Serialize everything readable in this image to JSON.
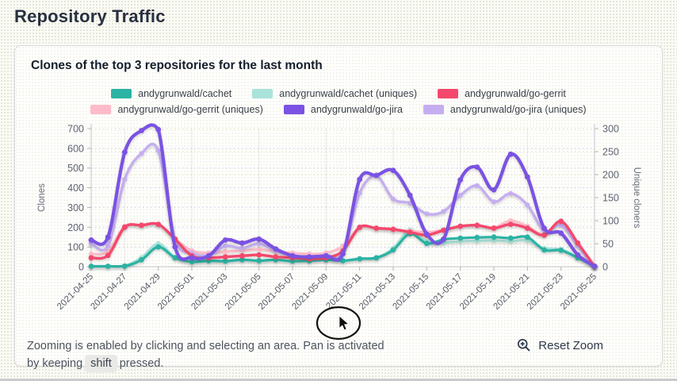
{
  "page": {
    "title": "Repository Traffic"
  },
  "card": {
    "title": "Clones of the top 3 repositories for the last month",
    "footer": {
      "line1": "Zooming is enabled by clicking and selecting an area. Pan is activated",
      "line2_before": "by keeping",
      "kbd": "shift",
      "line2_after": "pressed."
    },
    "reset_zoom_label": "Reset Zoom"
  },
  "icons": {
    "zoom_in": "zoom-in-icon",
    "cursor": "mouse-cursor-icon"
  },
  "chart_data": {
    "type": "line",
    "title": "Clones of the top 3 repositories for the last month",
    "grid": true,
    "legend_position": "top",
    "x": [
      "2021-04-25",
      "2021-04-26",
      "2021-04-27",
      "2021-04-28",
      "2021-04-29",
      "2021-04-30",
      "2021-05-01",
      "2021-05-02",
      "2021-05-03",
      "2021-05-04",
      "2021-05-05",
      "2021-05-06",
      "2021-05-07",
      "2021-05-08",
      "2021-05-09",
      "2021-05-10",
      "2021-05-11",
      "2021-05-12",
      "2021-05-13",
      "2021-05-14",
      "2021-05-15",
      "2021-05-16",
      "2021-05-17",
      "2021-05-18",
      "2021-05-19",
      "2021-05-20",
      "2021-05-21",
      "2021-05-22",
      "2021-05-23",
      "2021-05-24",
      "2021-05-25"
    ],
    "x_tick_labels": [
      "2021-04-25",
      "2021-04-27",
      "2021-04-29",
      "2021-05-01",
      "2021-05-03",
      "2021-05-05",
      "2021-05-07",
      "2021-05-09",
      "2021-05-11",
      "2021-05-13",
      "2021-05-15",
      "2021-05-17",
      "2021-05-19",
      "2021-05-21",
      "2021-05-23",
      "2021-05-25"
    ],
    "left_axis": {
      "label": "Clones",
      "min": 0,
      "max": 700,
      "tick_step": 100
    },
    "right_axis": {
      "label": "Unique cloners",
      "min": 0,
      "max": 300,
      "tick_step": 50
    },
    "series": [
      {
        "name": "andygrunwald/cachet",
        "axis": "left",
        "color": "#2bb3a3",
        "values": [
          2,
          2,
          3,
          35,
          100,
          45,
          25,
          30,
          28,
          35,
          30,
          35,
          28,
          30,
          35,
          30,
          40,
          45,
          85,
          167,
          118,
          138,
          145,
          148,
          150,
          145,
          150,
          85,
          83,
          45,
          2
        ]
      },
      {
        "name": "andygrunwald/cachet (uniques)",
        "axis": "right",
        "color": "#a9e3da",
        "values": [
          1,
          1,
          2,
          20,
          50,
          20,
          10,
          12,
          12,
          15,
          13,
          15,
          12,
          13,
          15,
          13,
          18,
          20,
          40,
          80,
          55,
          52,
          55,
          56,
          57,
          55,
          57,
          40,
          38,
          20,
          1
        ]
      },
      {
        "name": "andygrunwald/go-gerrit",
        "axis": "left",
        "color": "#f4486c",
        "values": [
          45,
          57,
          200,
          210,
          215,
          140,
          55,
          45,
          50,
          55,
          60,
          50,
          45,
          40,
          45,
          80,
          200,
          195,
          190,
          175,
          160,
          185,
          205,
          210,
          195,
          215,
          195,
          160,
          230,
          120,
          2
        ]
      },
      {
        "name": "andygrunwald/go-gerrit (uniques)",
        "axis": "right",
        "color": "#ffbcc8",
        "values": [
          28,
          33,
          88,
          90,
          92,
          60,
          35,
          30,
          33,
          35,
          38,
          33,
          30,
          28,
          30,
          45,
          85,
          83,
          80,
          78,
          75,
          80,
          88,
          90,
          85,
          100,
          88,
          70,
          98,
          50,
          1
        ]
      },
      {
        "name": "andygrunwald/go-jira",
        "axis": "left",
        "color": "#7b52e3",
        "values": [
          135,
          150,
          580,
          690,
          695,
          100,
          45,
          55,
          135,
          120,
          140,
          90,
          55,
          50,
          55,
          65,
          443,
          463,
          488,
          362,
          165,
          140,
          440,
          505,
          390,
          570,
          455,
          195,
          170,
          60,
          2
        ]
      },
      {
        "name": "andygrunwald/go-jira (uniques)",
        "axis": "right",
        "color": "#c5aef0",
        "values": [
          50,
          45,
          190,
          246,
          252,
          60,
          30,
          25,
          45,
          40,
          50,
          35,
          25,
          20,
          25,
          30,
          160,
          197,
          147,
          138,
          115,
          120,
          155,
          176,
          141,
          159,
          134,
          78,
          90,
          45,
          1
        ]
      }
    ]
  }
}
